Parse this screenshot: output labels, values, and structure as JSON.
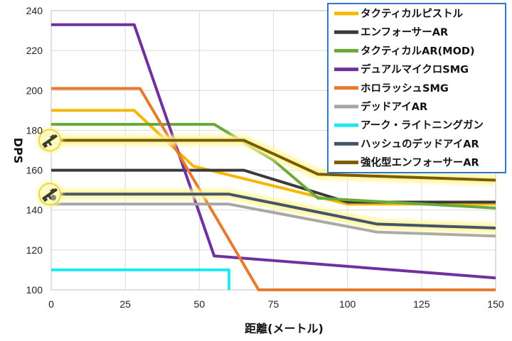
{
  "chart_data": {
    "type": "line",
    "xlabel": "距離(メートル)",
    "ylabel": "DPS",
    "xlim": [
      0,
      150
    ],
    "ylim": [
      100,
      240
    ],
    "xticks": [
      0,
      25,
      50,
      75,
      100,
      125,
      150
    ],
    "yticks": [
      100,
      120,
      140,
      160,
      180,
      200,
      220,
      240
    ],
    "grid": true,
    "legend_position": "top-right",
    "series": [
      {
        "name": "タクティカルピストル",
        "color": "#f5b800",
        "highlight": false,
        "points": [
          [
            0,
            190
          ],
          [
            28,
            190
          ],
          [
            48,
            162
          ],
          [
            100,
            143
          ],
          [
            150,
            143
          ]
        ]
      },
      {
        "name": "エンフォーサーAR",
        "color": "#3a3a3a",
        "highlight": false,
        "points": [
          [
            0,
            160
          ],
          [
            65,
            160
          ],
          [
            100,
            144
          ],
          [
            150,
            144
          ]
        ]
      },
      {
        "name": "タクティカルAR(MOD)",
        "color": "#6aaa3a",
        "highlight": false,
        "points": [
          [
            0,
            183
          ],
          [
            55,
            183
          ],
          [
            75,
            165
          ],
          [
            90,
            146
          ],
          [
            150,
            141
          ]
        ]
      },
      {
        "name": "デュアルマイクロSMG",
        "color": "#7030a0",
        "highlight": false,
        "points": [
          [
            0,
            233
          ],
          [
            28,
            233
          ],
          [
            55,
            117
          ],
          [
            150,
            106
          ]
        ]
      },
      {
        "name": "ホロラッシュSMG",
        "color": "#e87a30",
        "highlight": false,
        "points": [
          [
            0,
            201
          ],
          [
            30,
            201
          ],
          [
            70,
            100
          ],
          [
            150,
            100
          ]
        ]
      },
      {
        "name": "デッドアイAR",
        "color": "#a6a6a6",
        "highlight": false,
        "points": [
          [
            0,
            143
          ],
          [
            60,
            143
          ],
          [
            110,
            129
          ],
          [
            150,
            127
          ]
        ]
      },
      {
        "name": "アーク・ライトニングガン",
        "color": "#1ee8f0",
        "highlight": false,
        "points": [
          [
            0,
            110
          ],
          [
            60,
            110
          ],
          [
            60,
            100
          ]
        ]
      },
      {
        "name": "ハッシュのデッドアイAR",
        "color": "#44546a",
        "highlight": true,
        "points": [
          [
            0,
            148
          ],
          [
            60,
            148
          ],
          [
            110,
            133
          ],
          [
            150,
            131
          ]
        ]
      },
      {
        "name": "強化型エンフォーサーAR",
        "color": "#7a5c00",
        "highlight": true,
        "points": [
          [
            0,
            175
          ],
          [
            65,
            175
          ],
          [
            90,
            158
          ],
          [
            150,
            155
          ]
        ]
      }
    ],
    "badges": [
      {
        "name": "rifle-badge",
        "y": 175
      },
      {
        "name": "mutant-rifle-badge",
        "y": 148
      }
    ]
  }
}
